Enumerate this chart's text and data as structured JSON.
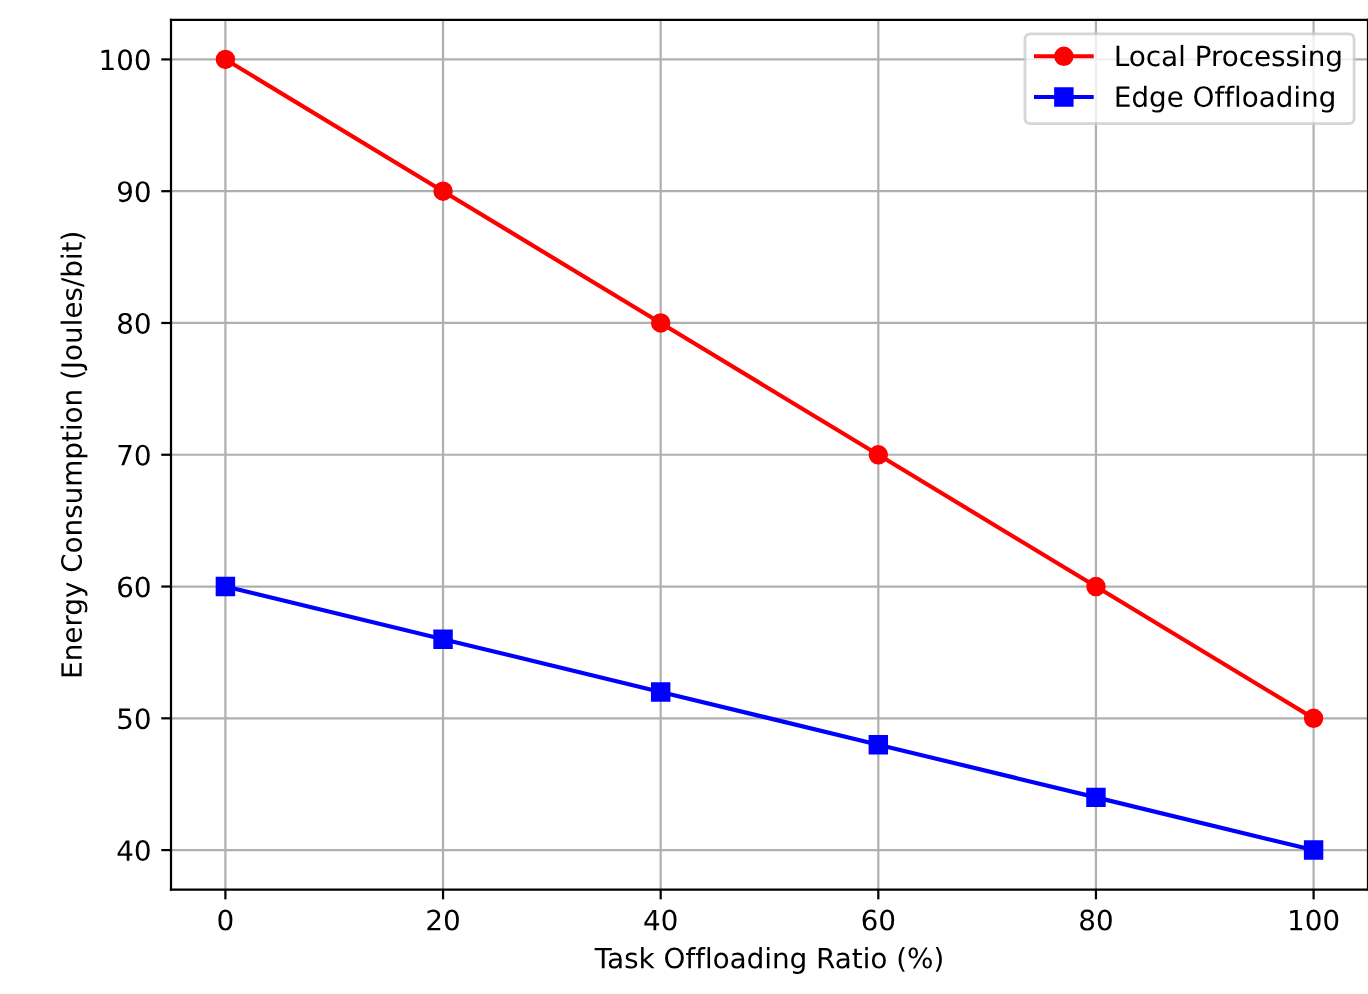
{
  "chart_data": {
    "type": "line",
    "xlabel": "Task Offloading Ratio (%)",
    "ylabel": "Energy Consumption (Joules/bit)",
    "x": [
      0,
      20,
      40,
      60,
      80,
      100
    ],
    "series": [
      {
        "name": "Local Processing",
        "color": "#ff0000",
        "marker": "circle",
        "values": [
          100,
          90,
          80,
          70,
          60,
          50
        ]
      },
      {
        "name": "Edge Offloading",
        "color": "#0000ff",
        "marker": "square",
        "values": [
          60,
          56,
          52,
          48,
          44,
          40
        ]
      }
    ],
    "xlim": [
      -5,
      105
    ],
    "ylim": [
      37,
      103
    ],
    "xticks": [
      0,
      20,
      40,
      60,
      80,
      100
    ],
    "yticks": [
      40,
      50,
      60,
      70,
      80,
      90,
      100
    ],
    "grid": true,
    "legend": "top right",
    "line_style": "solid"
  }
}
